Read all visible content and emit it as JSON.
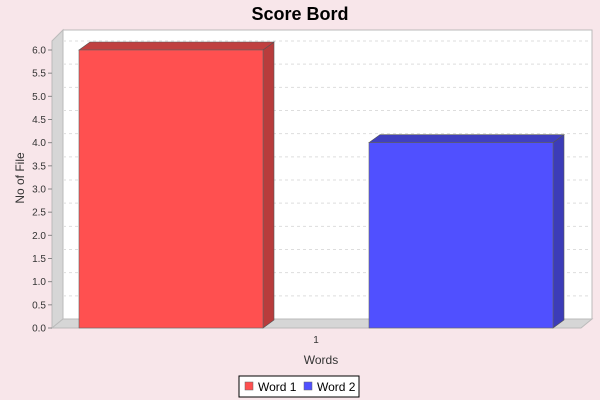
{
  "chart_data": {
    "type": "bar",
    "title": "Score Bord",
    "xlabel": "Words",
    "ylabel": "No of File",
    "categories": [
      "1"
    ],
    "series": [
      {
        "name": "Word 1",
        "values": [
          6.0
        ],
        "color": "#ff5050",
        "side_color": "#b83c3c",
        "top_color": "#c04040"
      },
      {
        "name": "Word 2",
        "values": [
          4.0
        ],
        "color": "#5050ff",
        "side_color": "#3c3cb8",
        "top_color": "#4040c0"
      }
    ],
    "ylim": [
      0,
      6.0
    ],
    "yticks": [
      0.0,
      0.5,
      1.0,
      1.5,
      2.0,
      2.5,
      3.0,
      3.5,
      4.0,
      4.5,
      5.0,
      5.5,
      6.0
    ],
    "grid": true,
    "legend_position": "bottom",
    "plot_background": "#ffffff",
    "background": "#f8e6ea"
  }
}
